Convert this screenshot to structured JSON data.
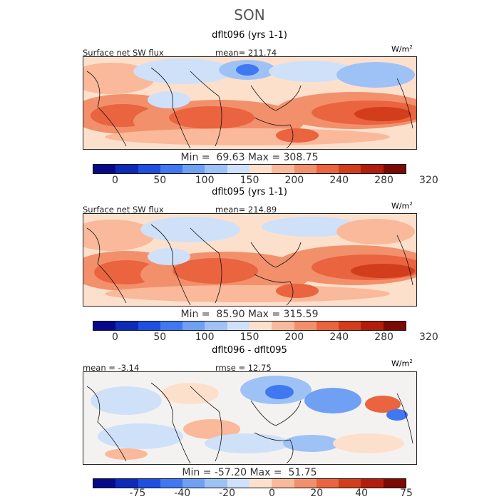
{
  "season": "SON",
  "panels": [
    {
      "title": "dflt096 (yrs 1-1)",
      "left_label": "Surface net SW flux",
      "center_label": "mean= 211.74",
      "units": "W/m",
      "units_exp": "2",
      "minmax": "Min =  69.63 Max = 308.75",
      "ticks": [
        "0",
        "50",
        "100",
        "150",
        "200",
        "240",
        "280",
        "320"
      ]
    },
    {
      "title": "dflt095 (yrs 1-1)",
      "left_label": "Surface net SW flux",
      "center_label": "mean= 214.89",
      "units": "W/m",
      "units_exp": "2",
      "minmax": "Min =  85.90 Max = 315.59",
      "ticks": [
        "0",
        "50",
        "100",
        "150",
        "200",
        "240",
        "280",
        "320"
      ]
    },
    {
      "title": "dflt096 - dflt095",
      "left_label": "mean =  -3.14",
      "center_label": "rmse =  12.75",
      "units": "W/m",
      "units_exp": "2",
      "minmax": "Min = -57.20 Max =  51.75",
      "ticks": [
        "-75",
        "-40",
        "-20",
        "0",
        "20",
        "40",
        "75"
      ]
    }
  ],
  "colors": {
    "palette": [
      "#08088a",
      "#0d2ab8",
      "#1f4fe0",
      "#3f78f0",
      "#6fa0f4",
      "#9ec2f6",
      "#cfe1f8",
      "#fde0cc",
      "#f9b99a",
      "#f3906c",
      "#e9643f",
      "#d23d1c",
      "#b21e0b",
      "#7c0a04"
    ]
  },
  "chart_data": [
    {
      "type": "heatmap",
      "title": "dflt096 (yrs 1-1)",
      "subtitle": "SON",
      "variable": "Surface net SW flux",
      "units": "W/m2",
      "mean": 211.74,
      "min": 69.63,
      "max": 308.75,
      "colorbar_ticks": [
        0,
        50,
        100,
        150,
        200,
        240,
        280,
        320
      ]
    },
    {
      "type": "heatmap",
      "title": "dflt095 (yrs 1-1)",
      "subtitle": "SON",
      "variable": "Surface net SW flux",
      "units": "W/m2",
      "mean": 214.89,
      "min": 85.9,
      "max": 315.59,
      "colorbar_ticks": [
        0,
        50,
        100,
        150,
        200,
        240,
        280,
        320
      ]
    },
    {
      "type": "heatmap",
      "title": "dflt096 - dflt095",
      "units": "W/m2",
      "mean": -3.14,
      "rmse": 12.75,
      "min": -57.2,
      "max": 51.75,
      "colorbar_ticks": [
        -75,
        -40,
        -20,
        0,
        20,
        40,
        75
      ]
    }
  ]
}
